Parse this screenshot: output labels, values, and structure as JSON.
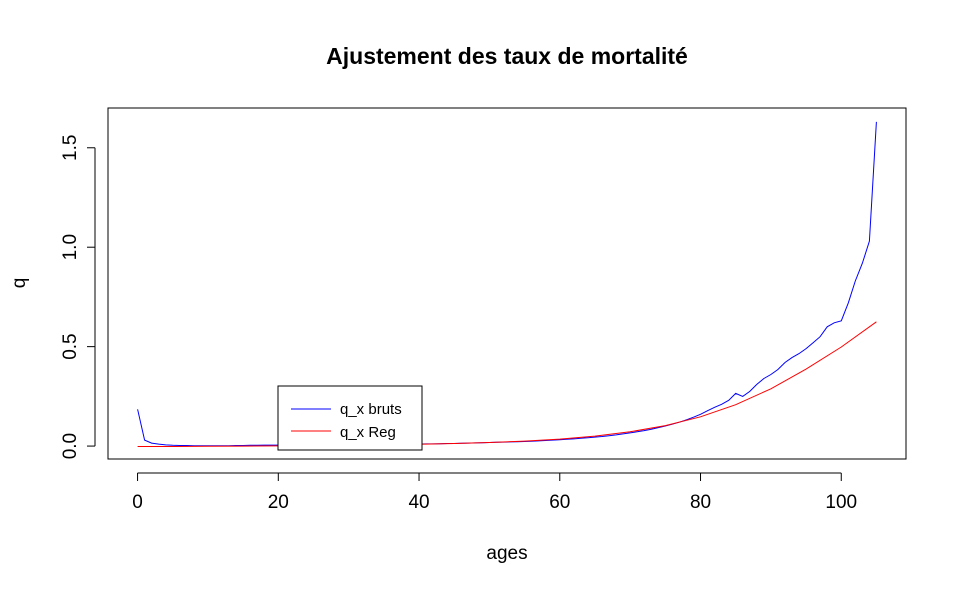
{
  "chart_data": {
    "type": "line",
    "title": "Ajustement des taux de mortalité",
    "xlabel": "ages",
    "ylabel": "q",
    "xlim": [
      -4.2,
      109.2
    ],
    "ylim": [
      -0.065,
      1.7
    ],
    "x_ticks": [
      0,
      20,
      40,
      60,
      80,
      100
    ],
    "y_ticks": [
      0.0,
      0.5,
      1.0,
      1.5
    ],
    "y_tick_labels": [
      "0.0",
      "0.5",
      "1.0",
      "1.5"
    ],
    "grid": false,
    "legend_position": "bottom-left",
    "series": [
      {
        "name": "q_x bruts",
        "color": "#0000ff",
        "x": [
          0,
          1,
          2,
          3,
          4,
          5,
          6,
          7,
          8,
          9,
          10,
          11,
          12,
          13,
          14,
          15,
          16,
          17,
          18,
          19,
          20,
          21,
          22,
          23,
          24,
          25,
          26,
          27,
          28,
          29,
          30,
          31,
          32,
          33,
          34,
          35,
          36,
          37,
          38,
          39,
          40,
          41,
          42,
          43,
          44,
          45,
          46,
          47,
          48,
          49,
          50,
          51,
          52,
          53,
          54,
          55,
          56,
          57,
          58,
          59,
          60,
          61,
          62,
          63,
          64,
          65,
          66,
          67,
          68,
          69,
          70,
          71,
          72,
          73,
          74,
          75,
          76,
          77,
          78,
          79,
          80,
          81,
          82,
          83,
          84,
          85,
          86,
          87,
          88,
          89,
          90,
          91,
          92,
          93,
          94,
          95,
          96,
          97,
          98,
          99,
          100,
          101,
          102,
          103,
          104,
          105
        ],
        "values": [
          0.185,
          0.03,
          0.015,
          0.01,
          0.006,
          0.004,
          0.003,
          0.003,
          0.002,
          0.002,
          0.002,
          0.002,
          0.002,
          0.002,
          0.003,
          0.003,
          0.004,
          0.004,
          0.005,
          0.005,
          0.005,
          0.005,
          0.005,
          0.005,
          0.005,
          0.006,
          0.006,
          0.006,
          0.006,
          0.006,
          0.007,
          0.007,
          0.007,
          0.007,
          0.008,
          0.008,
          0.008,
          0.009,
          0.009,
          0.01,
          0.01,
          0.011,
          0.011,
          0.012,
          0.013,
          0.013,
          0.014,
          0.015,
          0.016,
          0.017,
          0.018,
          0.019,
          0.02,
          0.021,
          0.022,
          0.023,
          0.024,
          0.026,
          0.028,
          0.03,
          0.032,
          0.034,
          0.036,
          0.039,
          0.042,
          0.045,
          0.048,
          0.052,
          0.056,
          0.061,
          0.066,
          0.072,
          0.078,
          0.085,
          0.093,
          0.101,
          0.11,
          0.12,
          0.132,
          0.145,
          0.16,
          0.178,
          0.195,
          0.21,
          0.23,
          0.265,
          0.25,
          0.275,
          0.31,
          0.34,
          0.36,
          0.385,
          0.42,
          0.445,
          0.465,
          0.49,
          0.52,
          0.55,
          0.6,
          0.62,
          0.63,
          0.72,
          0.83,
          0.92,
          1.03,
          1.63
        ]
      },
      {
        "name": "q_x Reg",
        "color": "#ff0000",
        "x": [
          0,
          5,
          10,
          15,
          20,
          25,
          30,
          35,
          40,
          45,
          50,
          55,
          60,
          65,
          70,
          75,
          80,
          85,
          90,
          95,
          100,
          105
        ],
        "values": [
          -0.002,
          -0.002,
          -0.001,
          0.0,
          0.001,
          0.002,
          0.004,
          0.006,
          0.009,
          0.013,
          0.018,
          0.025,
          0.035,
          0.05,
          0.072,
          0.103,
          0.147,
          0.208,
          0.288,
          0.387,
          0.498,
          0.625
        ]
      }
    ]
  }
}
